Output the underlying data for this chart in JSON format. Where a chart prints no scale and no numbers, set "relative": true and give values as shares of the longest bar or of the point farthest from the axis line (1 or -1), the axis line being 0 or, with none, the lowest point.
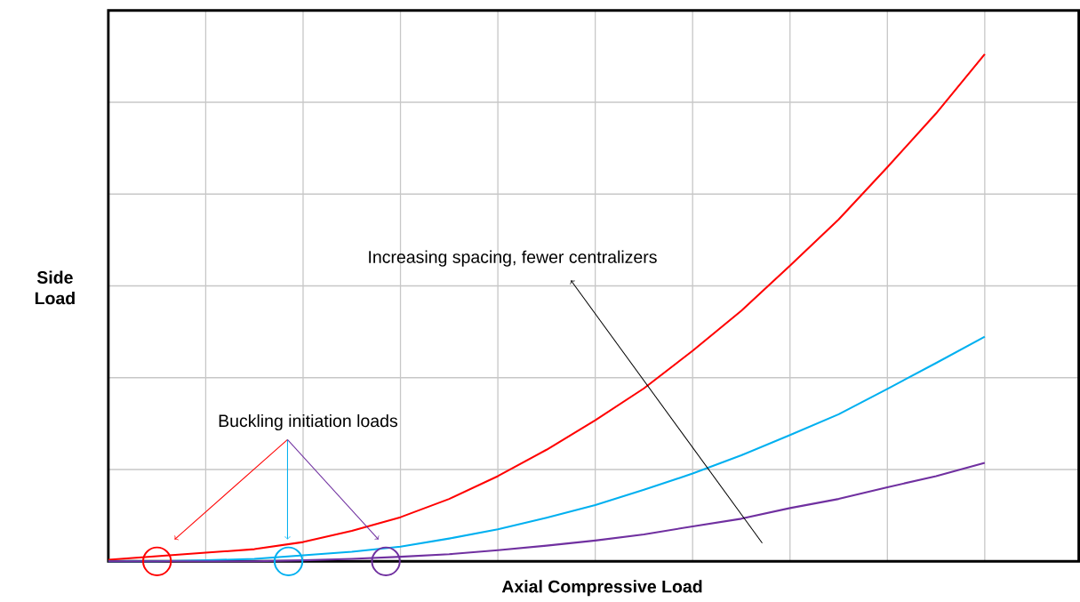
{
  "chart_data": {
    "type": "line",
    "relative": true,
    "grid": true,
    "xlabel": "Axial Compressive Load",
    "ylabel": "Side\nLoad",
    "categories": [
      null,
      null,
      null,
      null,
      null,
      null,
      null,
      null,
      null,
      null,
      null,
      null,
      null,
      null,
      null,
      null,
      null,
      null,
      null
    ],
    "series": [
      {
        "color": "#ff0000",
        "values": [
          0.003,
          0.01,
          0.017,
          0.024,
          0.038,
          0.06,
          0.087,
          0.123,
          0.168,
          0.22,
          0.278,
          0.341,
          0.415,
          0.494,
          0.583,
          0.674,
          0.777,
          0.883,
          1
        ]
      },
      {
        "color": "#00b0f0",
        "values": [
          0,
          0,
          0.002,
          0.005,
          0.012,
          0.019,
          0.029,
          0.045,
          0.063,
          0.086,
          0.111,
          0.141,
          0.173,
          0.209,
          0.249,
          0.29,
          0.34,
          0.391,
          0.443
        ]
      },
      {
        "color": "#7030a0",
        "values": [
          0,
          0,
          0,
          0,
          0.002,
          0.005,
          0.009,
          0.014,
          0.022,
          0.031,
          0.041,
          0.053,
          0.069,
          0.084,
          0.105,
          0.123,
          0.146,
          0.168,
          0.194
        ]
      }
    ],
    "annotations": [
      "Buckling initiation loads",
      "Increasing spacing, fewer centralizers"
    ]
  }
}
